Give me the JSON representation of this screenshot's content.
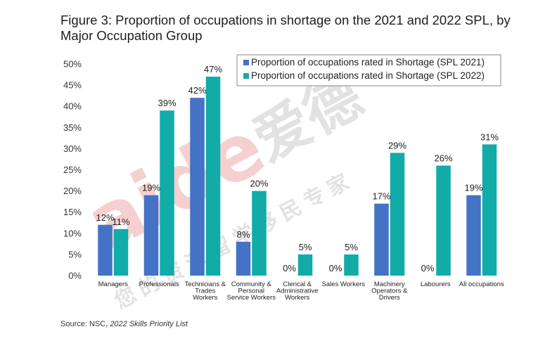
{
  "title": "Figure 3: Proportion of occupations in shortage on the 2021 and 2022 SPL, by Major Occupation Group",
  "source": {
    "prefix": "Source: NSC, ",
    "italic": "2022 Skills Priority List"
  },
  "watermark": {
    "latin": "aide",
    "cjk_big": "爱德",
    "cjk_small": "您的资深留学移民专家"
  },
  "colors": {
    "series1": "#4472C4",
    "series2": "#11ABA8",
    "watermark": "#E05A5A",
    "watermark_gray": "#9a9a9a"
  },
  "chart_data": {
    "type": "bar",
    "categories": [
      [
        "Managers"
      ],
      [
        "Professionals"
      ],
      [
        "Technicians &",
        "Trades",
        "Workers"
      ],
      [
        "Community &",
        "Personal",
        "Service Workers"
      ],
      [
        "Clerical &",
        "Administrative",
        "Workers"
      ],
      [
        "Sales Workers"
      ],
      [
        "Machinery",
        "Operators &",
        "Drivers"
      ],
      [
        "Labourers"
      ],
      [
        "All occupations"
      ]
    ],
    "series": [
      {
        "name": "Proportion of occupations rated in Shortage (SPL 2021)",
        "values": [
          12,
          19,
          42,
          8,
          0,
          0,
          17,
          0,
          19
        ],
        "labels": [
          "12%",
          "19%",
          "42%",
          "8%",
          "0%",
          "0%",
          "17%",
          "0%",
          "19%"
        ]
      },
      {
        "name": "Proportion of occupations rated in Shortage (SPL 2022)",
        "values": [
          11,
          39,
          47,
          20,
          5,
          5,
          29,
          26,
          31
        ],
        "labels": [
          "11%",
          "39%",
          "47%",
          "20%",
          "5%",
          "5%",
          "29%",
          "26%",
          "31%"
        ]
      }
    ],
    "yticks": [
      "0%",
      "5%",
      "10%",
      "15%",
      "20%",
      "25%",
      "30%",
      "35%",
      "40%",
      "45%",
      "50%"
    ],
    "ylim": [
      0,
      50
    ],
    "legend_position": "top-right",
    "grid": false
  }
}
